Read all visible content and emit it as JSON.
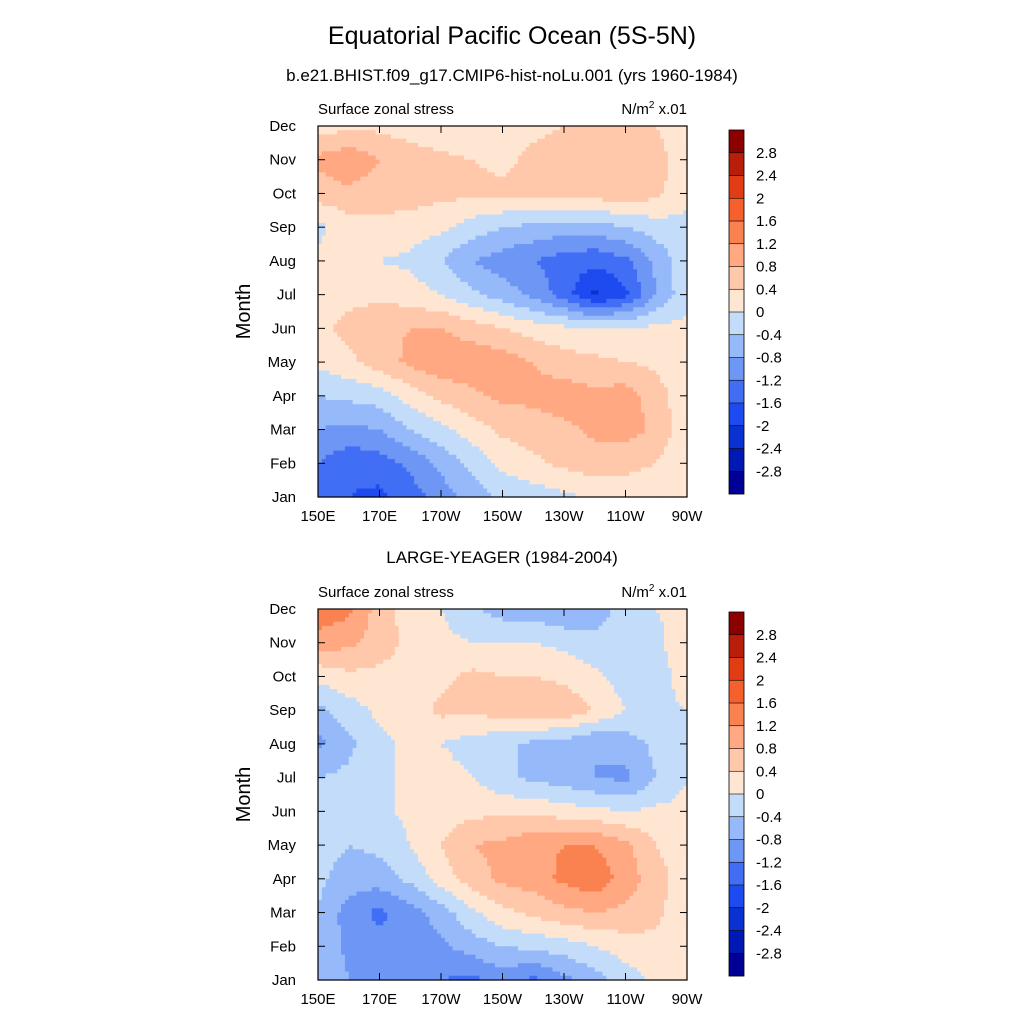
{
  "page": {
    "title": "Equatorial Pacific Ocean (5S-5N)",
    "subtitle": "b.e21.BHIST.f09_g17.CMIP6-hist-noLu.001 (yrs 1960-1984)"
  },
  "colorbar": {
    "levels": [
      -3.2,
      -2.8,
      -2.4,
      -2.0,
      -1.6,
      -1.2,
      -0.8,
      -0.4,
      0,
      0.4,
      0.8,
      1.2,
      1.6,
      2.0,
      2.4,
      2.8,
      3.2
    ],
    "labels": [
      "-2.8",
      "-2.4",
      "-2",
      "-1.6",
      "-1.2",
      "-0.8",
      "-0.4",
      "0",
      "0.4",
      "0.8",
      "1.2",
      "1.6",
      "2",
      "2.4",
      "2.8"
    ],
    "colors": [
      "#000096",
      "#0019b4",
      "#0a32d2",
      "#1e4bf0",
      "#416ef5",
      "#6e96f5",
      "#96b9fa",
      "#c3dcfa",
      "#ffe6d2",
      "#ffc8aa",
      "#ffa882",
      "#fa8250",
      "#f5602d",
      "#e13c14",
      "#b91e0a",
      "#8c0000"
    ]
  },
  "chart_data": [
    {
      "type": "heatmap",
      "panel_title": "",
      "left_label": "Surface zonal stress",
      "right_label_base": "N/m",
      "right_label_sup": "2",
      "right_label_tail": " x.01",
      "ylabel": "Month",
      "xlim": [
        150,
        270
      ],
      "x_ticks": [
        150,
        170,
        190,
        210,
        230,
        250,
        270
      ],
      "x_tick_labels": [
        "150E",
        "170E",
        "170W",
        "150W",
        "130W",
        "110W",
        "90W"
      ],
      "y_tick_labels": [
        "Jan",
        "Feb",
        "Mar",
        "Apr",
        "May",
        "Jun",
        "Jul",
        "Aug",
        "Sep",
        "Oct",
        "Nov",
        "Dec"
      ],
      "x": [
        150,
        160,
        170,
        180,
        190,
        200,
        210,
        220,
        230,
        240,
        250,
        260,
        270
      ],
      "y": [
        "Jan",
        "Feb",
        "Mar",
        "Apr",
        "May",
        "Jun",
        "Jul",
        "Aug",
        "Sep",
        "Oct",
        "Nov",
        "Dec"
      ],
      "z": [
        [
          -1.3,
          -1.6,
          -1.7,
          -1.4,
          -1.0,
          -0.6,
          -0.3,
          -0.2,
          -0.1,
          0.1,
          0.2,
          0.2,
          0.1
        ],
        [
          -1.2,
          -1.5,
          -1.4,
          -1.1,
          -0.7,
          -0.3,
          0.1,
          0.3,
          0.5,
          0.6,
          0.5,
          0.4,
          0.1
        ],
        [
          -0.8,
          -0.9,
          -0.8,
          -0.4,
          -0.1,
          0.2,
          0.5,
          0.6,
          0.7,
          0.9,
          1.0,
          0.7,
          0.1
        ],
        [
          -0.4,
          -0.3,
          -0.2,
          0.2,
          0.5,
          0.7,
          0.9,
          0.9,
          1.0,
          0.9,
          1.0,
          0.6,
          0.1
        ],
        [
          0.1,
          0.3,
          0.6,
          0.9,
          1.1,
          1.1,
          1.0,
          0.8,
          0.6,
          0.5,
          0.4,
          0.3,
          0.1
        ],
        [
          0.3,
          0.5,
          0.7,
          0.8,
          0.8,
          0.6,
          0.4,
          0.2,
          0.1,
          0.0,
          0.0,
          0.1,
          0.1
        ],
        [
          0.3,
          0.3,
          0.3,
          0.2,
          0.0,
          -0.3,
          -0.6,
          -0.9,
          -1.4,
          -2.1,
          -1.7,
          -0.8,
          -0.1
        ],
        [
          0.1,
          0.1,
          0.0,
          -0.1,
          -0.4,
          -0.8,
          -1.0,
          -1.2,
          -1.4,
          -1.5,
          -1.3,
          -0.7,
          -0.1
        ],
        [
          -0.1,
          0.2,
          0.3,
          0.2,
          0.1,
          -0.2,
          -0.4,
          -0.5,
          -0.6,
          -0.6,
          -0.4,
          -0.2,
          -0.1
        ],
        [
          0.6,
          0.7,
          0.6,
          0.6,
          0.5,
          0.5,
          0.5,
          0.5,
          0.5,
          0.6,
          0.7,
          0.5,
          0.1
        ],
        [
          0.9,
          1.1,
          0.8,
          0.6,
          0.5,
          0.4,
          0.3,
          0.5,
          0.6,
          0.8,
          0.8,
          0.6,
          0.1
        ],
        [
          0.2,
          0.3,
          0.3,
          0.2,
          0.1,
          0.1,
          0.2,
          0.3,
          0.4,
          0.5,
          0.5,
          0.4,
          0.0
        ]
      ],
      "levels": [
        -3.2,
        -2.8,
        -2.4,
        -2.0,
        -1.6,
        -1.2,
        -0.8,
        -0.4,
        0,
        0.4,
        0.8,
        1.2,
        1.6,
        2.0,
        2.4,
        2.8,
        3.2
      ]
    },
    {
      "type": "heatmap",
      "panel_title": "LARGE-YEAGER (1984-2004)",
      "left_label": "Surface zonal stress",
      "right_label_base": "N/m",
      "right_label_sup": "2",
      "right_label_tail": " x.01",
      "ylabel": "Month",
      "xlim": [
        150,
        270
      ],
      "x_ticks": [
        150,
        170,
        190,
        210,
        230,
        250,
        270
      ],
      "x_tick_labels": [
        "150E",
        "170E",
        "170W",
        "150W",
        "130W",
        "110W",
        "90W"
      ],
      "y_tick_labels": [
        "Jan",
        "Feb",
        "Mar",
        "Apr",
        "May",
        "Jun",
        "Jul",
        "Aug",
        "Sep",
        "Oct",
        "Nov",
        "Dec"
      ],
      "x": [
        150,
        160,
        170,
        180,
        190,
        200,
        210,
        220,
        230,
        240,
        250,
        260,
        270
      ],
      "y": [
        "Jan",
        "Feb",
        "Mar",
        "Apr",
        "May",
        "Jun",
        "Jul",
        "Aug",
        "Sep",
        "Oct",
        "Nov",
        "Dec"
      ],
      "z": [
        [
          -0.5,
          -0.8,
          -0.8,
          -0.9,
          -1.2,
          -1.3,
          -1.0,
          -1.3,
          -0.9,
          -0.6,
          -0.2,
          0.1,
          0.1
        ],
        [
          -0.5,
          -0.9,
          -1.1,
          -1.0,
          -0.9,
          -0.6,
          -0.4,
          -0.3,
          -0.2,
          0.0,
          0.2,
          0.3,
          0.1
        ],
        [
          -0.4,
          -1.0,
          -1.3,
          -1.0,
          -0.6,
          -0.1,
          0.3,
          0.5,
          0.7,
          0.8,
          0.7,
          0.5,
          0.1
        ],
        [
          -0.3,
          -0.6,
          -0.6,
          -0.3,
          0.2,
          0.6,
          0.9,
          1.0,
          1.3,
          1.5,
          1.0,
          0.6,
          0.1
        ],
        [
          -0.2,
          -0.4,
          -0.3,
          0.0,
          0.4,
          0.8,
          0.9,
          1.1,
          1.2,
          1.2,
          0.9,
          0.4,
          0.1
        ],
        [
          -0.3,
          -0.2,
          -0.1,
          0.1,
          0.2,
          0.3,
          0.3,
          0.3,
          0.2,
          0.1,
          0.0,
          0.1,
          0.1
        ],
        [
          -0.4,
          -0.3,
          -0.1,
          0.1,
          0.2,
          0.0,
          -0.3,
          -0.5,
          -0.6,
          -0.8,
          -0.9,
          -0.4,
          0.0
        ],
        [
          -0.9,
          -0.5,
          -0.1,
          0.1,
          0.0,
          -0.2,
          -0.3,
          -0.5,
          -0.6,
          -0.8,
          -0.6,
          -0.3,
          0.0
        ],
        [
          -0.5,
          -0.2,
          0.1,
          0.2,
          0.5,
          0.5,
          0.6,
          0.7,
          0.7,
          0.4,
          0.0,
          -0.1,
          0.0
        ],
        [
          0.1,
          0.3,
          0.3,
          0.2,
          0.3,
          0.5,
          0.4,
          0.4,
          0.3,
          0.1,
          -0.2,
          -0.2,
          0.2
        ],
        [
          1.0,
          0.9,
          0.6,
          0.3,
          0.1,
          0.0,
          0.0,
          0.0,
          -0.1,
          -0.3,
          -0.3,
          -0.1,
          0.3
        ],
        [
          1.5,
          1.3,
          0.6,
          0.2,
          0.0,
          -0.3,
          -0.6,
          -0.6,
          -0.8,
          -0.6,
          -0.2,
          0.0,
          0.1
        ]
      ],
      "levels": [
        -3.2,
        -2.8,
        -2.4,
        -2.0,
        -1.6,
        -1.2,
        -0.8,
        -0.4,
        0,
        0.4,
        0.8,
        1.2,
        1.6,
        2.0,
        2.4,
        2.8,
        3.2
      ]
    }
  ]
}
